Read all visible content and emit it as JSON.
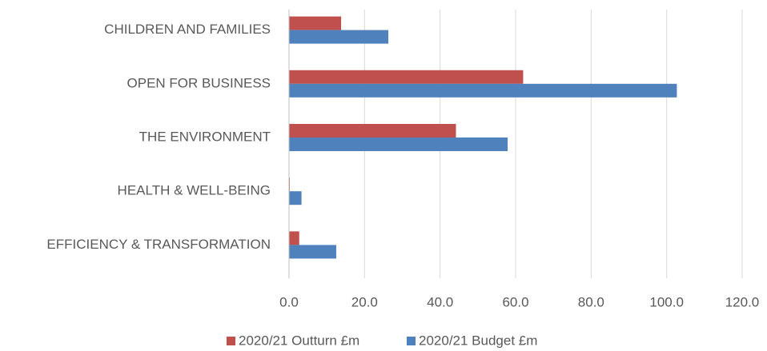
{
  "chart_data": {
    "type": "bar",
    "orientation": "horizontal",
    "categories": [
      "CHILDREN AND FAMILIES",
      "OPEN FOR BUSINESS",
      "THE ENVIRONMENT",
      "HEALTH & WELL-BEING",
      "EFFICIENCY & TRANSFORMATION"
    ],
    "series": [
      {
        "name": "2020/21 Outturn £m",
        "color": "#c0504d",
        "values": [
          13.8,
          62.0,
          44.2,
          0.2,
          2.7
        ]
      },
      {
        "name": "2020/21 Budget £m",
        "color": "#4f81bd",
        "values": [
          26.3,
          102.7,
          57.9,
          3.3,
          12.5
        ]
      }
    ],
    "xlim": [
      0,
      120
    ],
    "xticks": [
      {
        "value": 0,
        "label": "0.0"
      },
      {
        "value": 20,
        "label": "20.0"
      },
      {
        "value": 40,
        "label": "40.0"
      },
      {
        "value": 60,
        "label": "60.0"
      },
      {
        "value": 80,
        "label": "80.0"
      },
      {
        "value": 100,
        "label": "100.0"
      },
      {
        "value": 120,
        "label": "120.0"
      }
    ],
    "grid": true,
    "legend": "bottom"
  }
}
